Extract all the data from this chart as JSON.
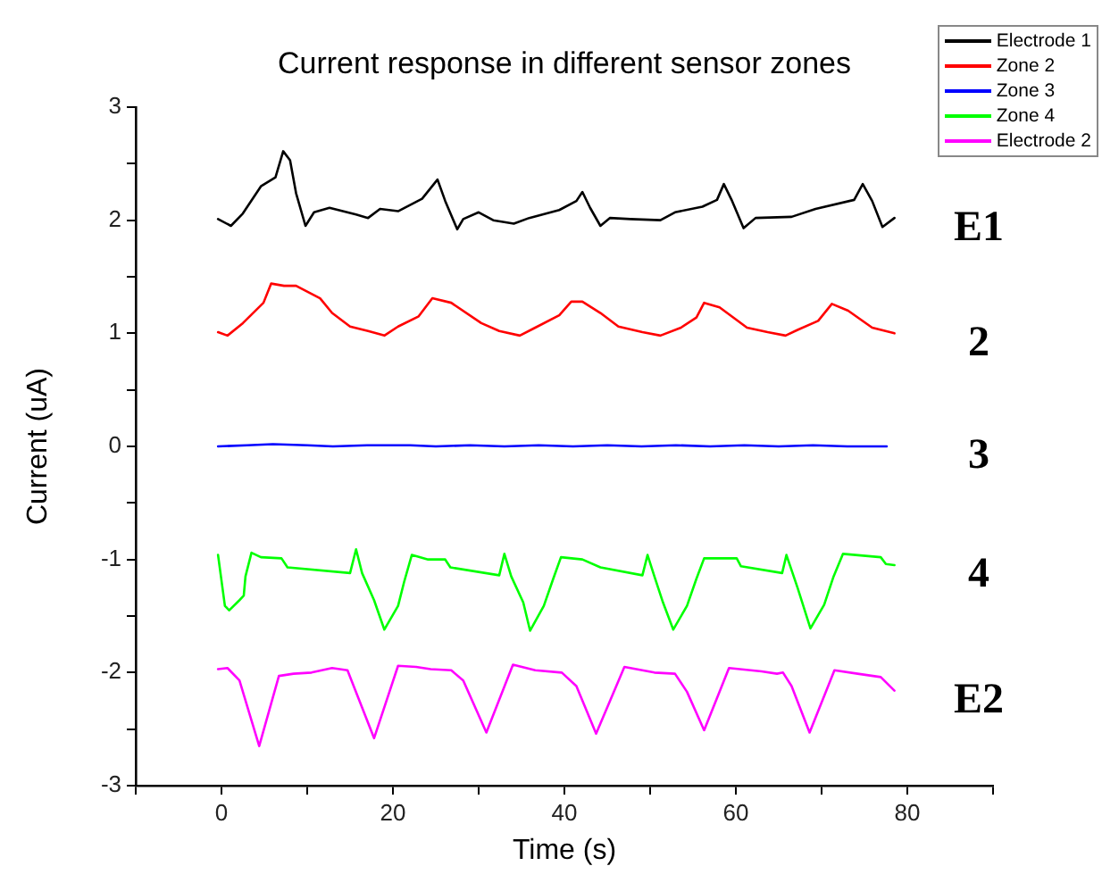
{
  "chart_data": {
    "type": "line",
    "title": "Current response in different sensor zones",
    "xlabel": "Time (s)",
    "ylabel": "Current (uA)",
    "xlim": [
      -10,
      90
    ],
    "xticks": [
      {
        "value": -10,
        "label": null
      },
      0,
      {
        "value": 10,
        "label": null
      },
      20,
      {
        "value": 30,
        "label": null
      },
      40,
      {
        "value": 50,
        "label": null
      },
      60,
      {
        "value": 70,
        "label": null
      },
      80,
      {
        "value": 90,
        "label": null
      }
    ],
    "ylim": [
      -3,
      3
    ],
    "yticks": [
      -3,
      {
        "value": -2.5,
        "label": null
      },
      -2,
      {
        "value": -1.5,
        "label": null
      },
      -1,
      {
        "value": -0.5,
        "label": null
      },
      0,
      {
        "value": 0.5,
        "label": null
      },
      1,
      {
        "value": 1.5,
        "label": null
      },
      2,
      {
        "value": 2.5,
        "label": null
      },
      3
    ],
    "grid": false,
    "legend": "top right",
    "marker": "none",
    "line_style": "solid",
    "annotations": [
      "E1",
      "2",
      "3",
      "4",
      "E2"
    ],
    "series": [
      {
        "name": "Electrode 1",
        "color": "#000000",
        "x": [
          -0.4,
          1.1,
          2.5,
          4.6,
          6.3,
          7.2,
          8.0,
          8.7,
          9.8,
          10.8,
          12.6,
          15.7,
          17.1,
          18.5,
          20.6,
          23.4,
          25.2,
          26.1,
          27.5,
          28.2,
          30.0,
          31.7,
          34.1,
          35.9,
          39.4,
          41.4,
          42.1,
          43.0,
          44.2,
          45.3,
          47.7,
          51.2,
          52.9,
          56.1,
          57.8,
          58.6,
          59.5,
          60.9,
          62.3,
          66.5,
          69.3,
          73.8,
          74.8,
          75.9,
          77.1,
          78.5
        ],
        "values": [
          2.01,
          1.95,
          2.06,
          2.3,
          2.38,
          2.61,
          2.53,
          2.24,
          1.95,
          2.07,
          2.11,
          2.05,
          2.02,
          2.1,
          2.08,
          2.19,
          2.36,
          2.17,
          1.92,
          2.01,
          2.07,
          2.0,
          1.97,
          2.02,
          2.09,
          2.17,
          2.25,
          2.11,
          1.95,
          2.02,
          2.01,
          2.0,
          2.07,
          2.12,
          2.18,
          2.32,
          2.18,
          1.93,
          2.02,
          2.03,
          2.1,
          2.18,
          2.32,
          2.17,
          1.94,
          2.02
        ]
      },
      {
        "name": "Zone 2",
        "color": "#ff0000",
        "x": [
          -0.4,
          0.7,
          2.5,
          4.9,
          5.8,
          7.3,
          8.7,
          11.5,
          12.9,
          15.0,
          17.1,
          19.0,
          20.6,
          23.0,
          24.6,
          26.8,
          30.3,
          32.4,
          34.8,
          36.6,
          39.4,
          40.8,
          42.1,
          44.2,
          46.3,
          49.1,
          51.2,
          53.6,
          55.4,
          56.3,
          58.1,
          61.3,
          63.7,
          65.8,
          67.2,
          69.6,
          71.2,
          73.1,
          75.9,
          78.5
        ],
        "values": [
          1.01,
          0.98,
          1.09,
          1.27,
          1.44,
          1.42,
          1.42,
          1.31,
          1.18,
          1.06,
          1.02,
          0.98,
          1.06,
          1.15,
          1.31,
          1.27,
          1.09,
          1.02,
          0.98,
          1.05,
          1.16,
          1.28,
          1.28,
          1.18,
          1.06,
          1.01,
          0.98,
          1.05,
          1.14,
          1.27,
          1.23,
          1.05,
          1.01,
          0.98,
          1.03,
          1.11,
          1.26,
          1.2,
          1.05,
          1.0
        ]
      },
      {
        "name": "Zone 3",
        "color": "#0000ff",
        "x": [
          -0.4,
          3,
          6,
          10,
          13,
          17,
          22,
          25,
          29,
          33,
          37,
          41,
          45,
          49,
          53,
          57,
          61,
          65,
          69,
          73,
          77.6
        ],
        "values": [
          0,
          0.01,
          0.02,
          0.01,
          0,
          0.01,
          0.01,
          0,
          0.01,
          0,
          0.01,
          0,
          0.01,
          0,
          0.01,
          0,
          0.01,
          0,
          0.01,
          0,
          0
        ]
      },
      {
        "name": "Zone 4",
        "color": "#00ff00",
        "x": [
          -0.4,
          0.4,
          0.9,
          2.1,
          2.6,
          2.8,
          3.5,
          4.6,
          7.0,
          7.7,
          15.0,
          15.7,
          16.4,
          17.8,
          19.0,
          20.6,
          21.3,
          22.2,
          24.1,
          26.1,
          26.7,
          32.4,
          33.0,
          33.8,
          35.2,
          36.0,
          37.6,
          38.7,
          39.6,
          42.1,
          44.2,
          49.1,
          49.7,
          50.5,
          51.5,
          52.7,
          54.3,
          55.4,
          56.3,
          60.1,
          60.6,
          65.4,
          65.9,
          67.2,
          68.7,
          70.3,
          71.4,
          72.5,
          76.9,
          77.5,
          78.5
        ],
        "values": [
          -0.96,
          -1.41,
          -1.45,
          -1.36,
          -1.32,
          -1.15,
          -0.94,
          -0.98,
          -0.99,
          -1.07,
          -1.12,
          -0.91,
          -1.12,
          -1.36,
          -1.62,
          -1.41,
          -1.2,
          -0.96,
          -1.0,
          -1.0,
          -1.07,
          -1.14,
          -0.95,
          -1.15,
          -1.38,
          -1.63,
          -1.41,
          -1.17,
          -0.98,
          -1.0,
          -1.07,
          -1.14,
          -0.96,
          -1.15,
          -1.38,
          -1.62,
          -1.41,
          -1.17,
          -0.99,
          -0.99,
          -1.06,
          -1.12,
          -0.96,
          -1.25,
          -1.61,
          -1.4,
          -1.15,
          -0.95,
          -0.98,
          -1.04,
          -1.05
        ]
      },
      {
        "name": "Electrode 2",
        "color": "#ff00ff",
        "x": [
          -0.4,
          0.7,
          2.1,
          4.4,
          6.7,
          8.4,
          10.5,
          12.9,
          14.7,
          17.8,
          20.6,
          22.7,
          24.4,
          26.8,
          28.2,
          30.9,
          34.0,
          36.6,
          39.7,
          41.4,
          43.7,
          47.0,
          50.5,
          52.9,
          54.3,
          56.3,
          59.2,
          63.0,
          64.8,
          65.5,
          66.5,
          68.6,
          71.5,
          74.2,
          76.9,
          78.5
        ],
        "values": [
          -1.97,
          -1.96,
          -2.07,
          -2.65,
          -2.03,
          -2.01,
          -2.0,
          -1.96,
          -1.98,
          -2.58,
          -1.94,
          -1.95,
          -1.97,
          -1.98,
          -2.07,
          -2.53,
          -1.93,
          -1.98,
          -2.0,
          -2.12,
          -2.54,
          -1.95,
          -2.0,
          -2.01,
          -2.17,
          -2.51,
          -1.96,
          -1.99,
          -2.01,
          -2.0,
          -2.12,
          -2.53,
          -1.98,
          -2.01,
          -2.04,
          -2.16
        ]
      }
    ]
  }
}
